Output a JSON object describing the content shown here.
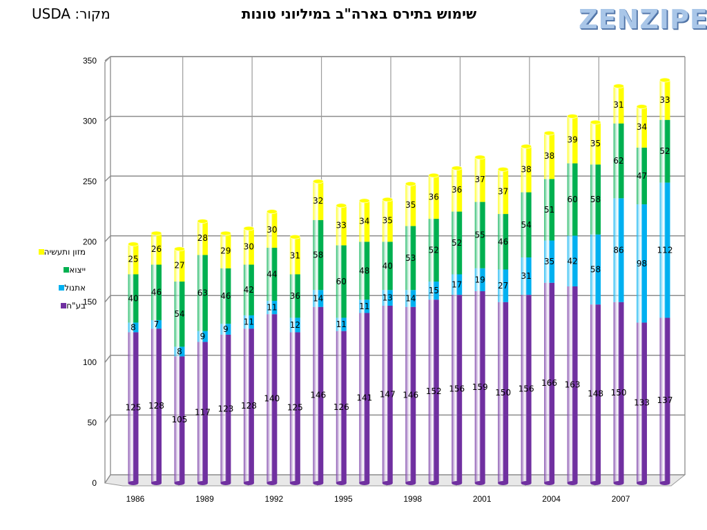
{
  "header": {
    "title": "שימוש בתירס בארה\"ב במיליוני טונות",
    "source": "מקור: USDA",
    "logo": "ZENZIPER"
  },
  "chart_data": {
    "type": "bar",
    "stacked": true,
    "categories": [
      "1986",
      "1987",
      "1988",
      "1989",
      "1990",
      "1991",
      "1992",
      "1993",
      "1994",
      "1995",
      "1996",
      "1997",
      "1998",
      "1999",
      "2000",
      "2001",
      "2002",
      "2003",
      "2004",
      "2005",
      "2006",
      "2007",
      "2008",
      "2009"
    ],
    "x_tick_labels": [
      "1986",
      "",
      "",
      "1989",
      "",
      "",
      "1992",
      "",
      "",
      "1995",
      "",
      "",
      "1998",
      "",
      "",
      "2001",
      "",
      "",
      "2004",
      "",
      "",
      "2007",
      "",
      ""
    ],
    "ylim": [
      0,
      350
    ],
    "y_ticks": [
      0,
      50,
      100,
      150,
      200,
      250,
      300,
      350
    ],
    "grid": true,
    "legend_position": "left",
    "series": [
      {
        "name": "בע\"ח",
        "color": "#7030a0",
        "values": [
          125,
          128,
          105,
          117,
          123,
          128,
          140,
          125,
          146,
          126,
          141,
          147,
          146,
          152,
          156,
          159,
          150,
          156,
          166,
          163,
          148,
          150,
          133,
          137
        ]
      },
      {
        "name": "אתנול",
        "color": "#00b0f0",
        "values": [
          8,
          7,
          8,
          9,
          9,
          11,
          11,
          12,
          14,
          11,
          11,
          13,
          14,
          15,
          17,
          19,
          27,
          31,
          35,
          42,
          58,
          86,
          98,
          112
        ]
      },
      {
        "name": "ייצוא",
        "color": "#00b050",
        "values": [
          40,
          46,
          54,
          63,
          46,
          42,
          44,
          36,
          58,
          60,
          48,
          40,
          53,
          52,
          52,
          55,
          46,
          54,
          51,
          60,
          58,
          62,
          47,
          52
        ]
      },
      {
        "name": "מזון ותעשיה",
        "color": "#ffff00",
        "values": [
          25,
          26,
          27,
          28,
          29,
          30,
          30,
          31,
          32,
          33,
          34,
          35,
          35,
          36,
          36,
          37,
          37,
          38,
          38,
          39,
          35,
          31,
          34,
          33
        ]
      }
    ]
  }
}
